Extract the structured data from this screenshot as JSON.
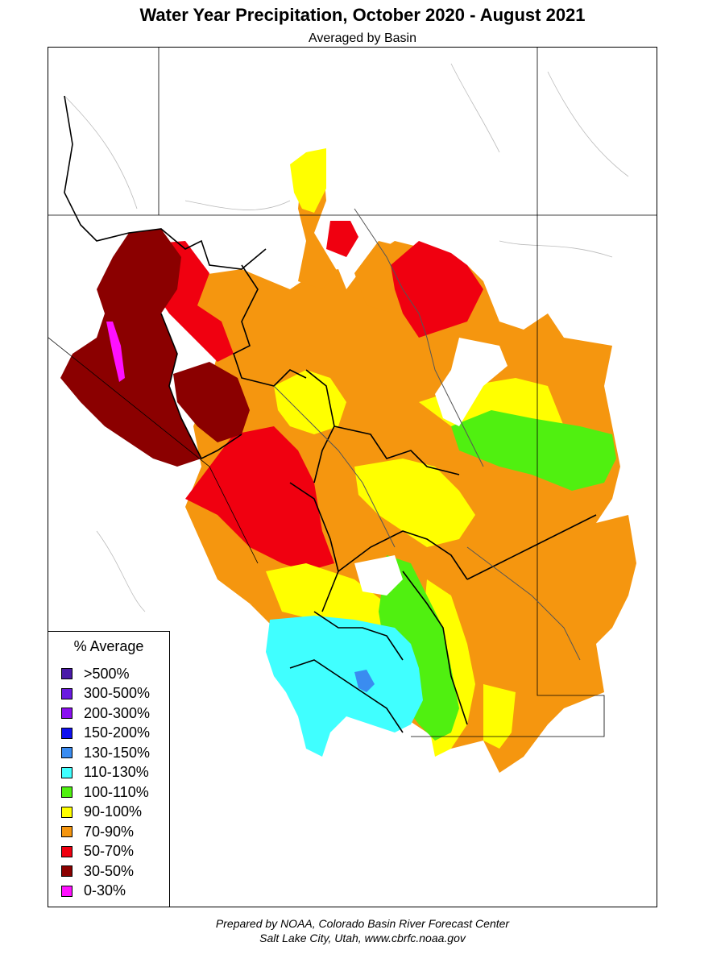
{
  "title": "Water Year Precipitation, October 2020 - August 2021",
  "subtitle": "Averaged by Basin",
  "legend": {
    "title": "% Average",
    "items": [
      {
        "label": ">500%",
        "color": "#4a1aa8"
      },
      {
        "label": "300-500%",
        "color": "#6a1ae0"
      },
      {
        "label": "200-300%",
        "color": "#8a10f0"
      },
      {
        "label": "150-200%",
        "color": "#1010f0"
      },
      {
        "label": "130-150%",
        "color": "#3a8cf0"
      },
      {
        "label": "110-130%",
        "color": "#40ffff"
      },
      {
        "label": "100-110%",
        "color": "#50f010"
      },
      {
        "label": "90-100%",
        "color": "#ffff00"
      },
      {
        "label": "70-90%",
        "color": "#f5960f"
      },
      {
        "label": "50-70%",
        "color": "#f00010"
      },
      {
        "label": "30-50%",
        "color": "#8b0000"
      },
      {
        "label": "0-30%",
        "color": "#ff10ff"
      }
    ]
  },
  "credit": {
    "line1": "Prepared by NOAA, Colorado Basin River Forecast Center",
    "line2": "Salt Lake City, Utah, www.cbrfc.noaa.gov"
  }
}
